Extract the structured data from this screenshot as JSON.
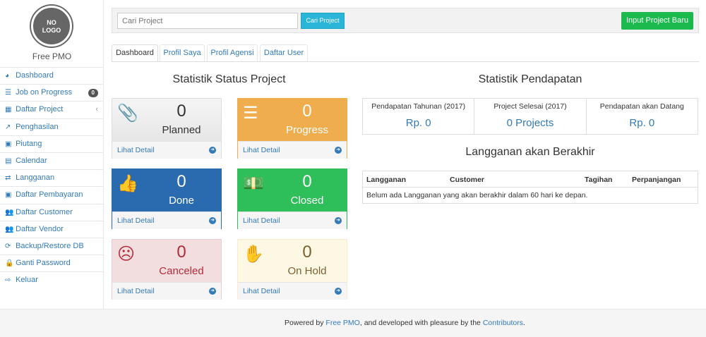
{
  "sidebar": {
    "logo_text": "NO LOGO",
    "brand": "Free PMO",
    "items": [
      {
        "label": "Dashboard",
        "icon": "dashboard-icon",
        "glyph": "◕"
      },
      {
        "label": "Job on Progress",
        "icon": "tasks-icon",
        "glyph": "☰",
        "badge": "0"
      },
      {
        "label": "Daftar Project",
        "icon": "table-icon",
        "glyph": "▦"
      },
      {
        "label": "Penghasilan",
        "icon": "line-chart-icon",
        "glyph": "↗"
      },
      {
        "label": "Piutang",
        "icon": "money-icon",
        "glyph": "▣"
      },
      {
        "label": "Calendar",
        "icon": "calendar-icon",
        "glyph": "▤"
      },
      {
        "label": "Langganan",
        "icon": "retweet-icon",
        "glyph": "⇄"
      },
      {
        "label": "Daftar Pembayaran",
        "icon": "money-icon",
        "glyph": "▣"
      },
      {
        "label": "Daftar Customer",
        "icon": "users-icon",
        "glyph": "👥"
      },
      {
        "label": "Daftar Vendor",
        "icon": "users-icon",
        "glyph": "👥"
      },
      {
        "label": "Backup/Restore DB",
        "icon": "refresh-icon",
        "glyph": "⟳"
      },
      {
        "label": "Ganti Password",
        "icon": "lock-icon",
        "glyph": "🔒"
      },
      {
        "label": "Keluar",
        "icon": "sign-out-icon",
        "glyph": "⇨"
      }
    ]
  },
  "topbar": {
    "search_placeholder": "Cari Project",
    "search_button": "Cari Project",
    "new_button": "Input Project Baru"
  },
  "tabs": [
    "Dashboard",
    "Profil Saya",
    "Profil Agensi",
    "Daftar User"
  ],
  "status": {
    "title": "Statistik Status Project",
    "detail_label": "Lihat Detail",
    "cards": [
      {
        "label": "Planned",
        "count": "0",
        "icon": "paperclip-icon"
      },
      {
        "label": "Progress",
        "count": "0",
        "icon": "server-icon"
      },
      {
        "label": "Done",
        "count": "0",
        "icon": "thumbs-up-icon"
      },
      {
        "label": "Closed",
        "count": "0",
        "icon": "money-icon"
      },
      {
        "label": "Canceled",
        "count": "0",
        "icon": "frown-icon"
      },
      {
        "label": "On Hold",
        "count": "0",
        "icon": "hand-icon"
      }
    ]
  },
  "income": {
    "title": "Statistik Pendapatan",
    "stats": [
      {
        "label": "Pendapatan Tahunan (2017)",
        "value": "Rp. 0"
      },
      {
        "label": "Project Selesai (2017)",
        "value": "0 Projects"
      },
      {
        "label": "Pendapatan akan Datang",
        "value": "Rp. 0"
      }
    ]
  },
  "expiring": {
    "title": "Langganan akan Berakhir",
    "columns": [
      "Langganan",
      "Customer",
      "Tagihan",
      "Perpanjangan"
    ],
    "empty": "Belum ada Langganan yang akan berakhir dalam 60 hari ke depan."
  },
  "footer": {
    "pre": "Powered by ",
    "link1": "Free PMO",
    "mid": ", and developed with pleasure by the ",
    "link2": "Contributors",
    "post": "."
  },
  "colors": {
    "progress": "#f0ad4e",
    "done": "#2a6bb0",
    "closed": "#2ebf5b",
    "canceled": "#f2dede",
    "onhold": "#fcf8e3"
  }
}
